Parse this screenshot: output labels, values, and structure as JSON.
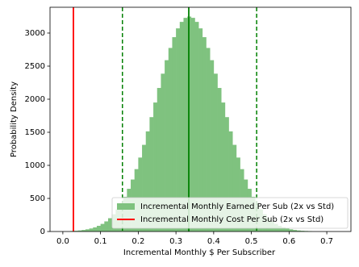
{
  "chart_data": {
    "type": "histogram",
    "xlabel": "Incremental Monthly $ Per Subscriber",
    "ylabel": "Probability Density",
    "bins": [
      0.02,
      0.03,
      0.04,
      0.05,
      0.06,
      0.07,
      0.08,
      0.09,
      0.1,
      0.11,
      0.12,
      0.13,
      0.14,
      0.15,
      0.16,
      0.17,
      0.18,
      0.19,
      0.2,
      0.21,
      0.22,
      0.23,
      0.24,
      0.25,
      0.26,
      0.27,
      0.28,
      0.29,
      0.3,
      0.31,
      0.32,
      0.33,
      0.34,
      0.35,
      0.36,
      0.37,
      0.38,
      0.39,
      0.4,
      0.41,
      0.42,
      0.43,
      0.44,
      0.45,
      0.46,
      0.47,
      0.48,
      0.49,
      0.5,
      0.51,
      0.52,
      0.53,
      0.54,
      0.55,
      0.56,
      0.57,
      0.58,
      0.59,
      0.6,
      0.61,
      0.62,
      0.63,
      0.64,
      0.65,
      0.66
    ],
    "series": [
      {
        "name": "Incremental Monthly Earned Per Sub (2x vs Std)",
        "color": "#7fc27f",
        "values": [
          8,
          11,
          16,
          23,
          33,
          46,
          63,
          86,
          115,
          153,
          201,
          260,
          333,
          421,
          525,
          646,
          786,
          943,
          1118,
          1310,
          1514,
          1729,
          1950,
          2170,
          2386,
          2590,
          2775,
          2938,
          3071,
          3169,
          3230,
          3250,
          3230,
          3169,
          3071,
          2938,
          2775,
          2590,
          2386,
          2170,
          1950,
          1729,
          1514,
          1310,
          1118,
          943,
          786,
          646,
          525,
          421,
          333,
          260,
          201,
          153,
          115,
          86,
          63,
          46,
          33,
          23,
          16,
          11,
          8,
          5
        ]
      }
    ],
    "vlines": [
      {
        "name": "Incremental Monthly Cost Per Sub (2x vs Std)",
        "x": 0.028,
        "color": "#ff0000",
        "dashed": false
      },
      {
        "x": 0.158,
        "color": "#008000",
        "dashed": true
      },
      {
        "x": 0.334,
        "color": "#008000",
        "dashed": false
      },
      {
        "x": 0.514,
        "color": "#008000",
        "dashed": true
      }
    ],
    "xlim": [
      -0.034,
      0.764
    ],
    "ylim": [
      0,
      3390
    ],
    "xticks": [
      {
        "value": 0,
        "label": "0.0"
      },
      0.1,
      0.2,
      0.3,
      0.4,
      0.5,
      0.6,
      0.7
    ],
    "yticks": [
      0,
      500,
      1000,
      1500,
      2000,
      2500,
      3000
    ],
    "legend": "lower right"
  }
}
